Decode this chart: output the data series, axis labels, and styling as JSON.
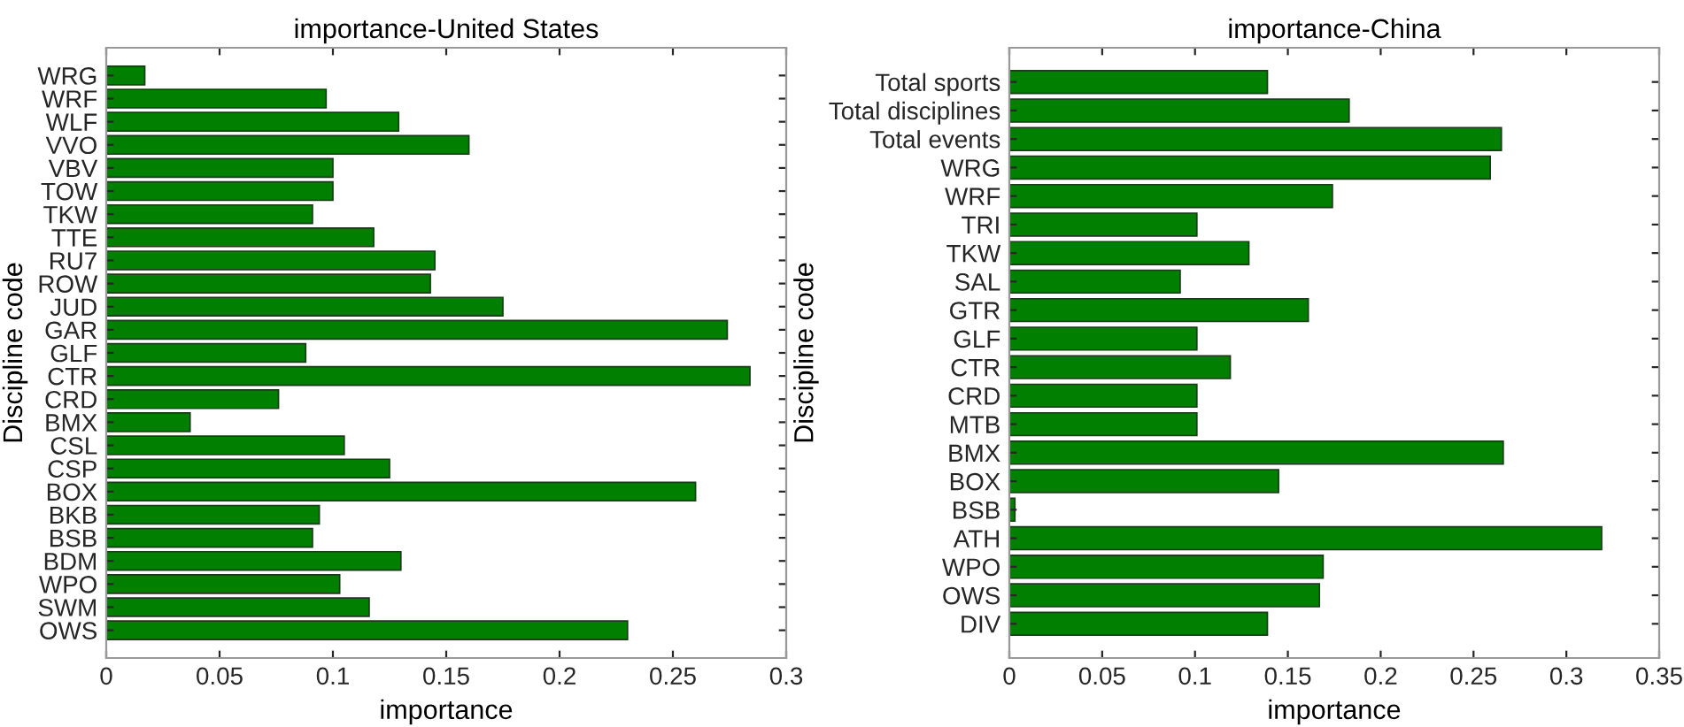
{
  "chart_data": [
    {
      "type": "bar",
      "orientation": "horizontal",
      "title": "importance-United States",
      "xlabel": "importance",
      "ylabel": "Discipline code",
      "color": "#007f00",
      "categories": [
        "WRG",
        "WRF",
        "WLF",
        "VVO",
        "VBV",
        "TOW",
        "TKW",
        "TTE",
        "RU7",
        "ROW",
        "JUD",
        "GAR",
        "GLF",
        "CTR",
        "CRD",
        "BMX",
        "CSL",
        "CSP",
        "BOX",
        "BKB",
        "BSB",
        "BDM",
        "WPO",
        "SWM",
        "OWS"
      ],
      "values": [
        0.017,
        0.097,
        0.129,
        0.16,
        0.1,
        0.1,
        0.091,
        0.118,
        0.145,
        0.143,
        0.175,
        0.274,
        0.088,
        0.284,
        0.076,
        0.037,
        0.105,
        0.125,
        0.26,
        0.094,
        0.091,
        0.13,
        0.103,
        0.116,
        0.23
      ],
      "xlim": [
        0,
        0.3
      ],
      "xticks": [
        0,
        0.05,
        0.1,
        0.15,
        0.2,
        0.25,
        0.3
      ],
      "grid": false,
      "legend": false
    },
    {
      "type": "bar",
      "orientation": "horizontal",
      "title": "importance-China",
      "xlabel": "importance",
      "ylabel": "Discipline code",
      "color": "#007f00",
      "categories": [
        "Total sports",
        "Total disciplines",
        "Total events",
        "WRG",
        "WRF",
        "TRI",
        "TKW",
        "SAL",
        "GTR",
        "GLF",
        "CTR",
        "CRD",
        "MTB",
        "BMX",
        "BOX",
        "BSB",
        "ATH",
        "WPO",
        "OWS",
        "DIV"
      ],
      "values": [
        0.139,
        0.183,
        0.265,
        0.259,
        0.174,
        0.101,
        0.129,
        0.092,
        0.161,
        0.101,
        0.119,
        0.101,
        0.101,
        0.266,
        0.145,
        0.003,
        0.319,
        0.169,
        0.167,
        0.139
      ],
      "xlim": [
        0,
        0.35
      ],
      "xticks": [
        0,
        0.05,
        0.1,
        0.15,
        0.2,
        0.25,
        0.3,
        0.35
      ],
      "grid": false,
      "legend": false
    }
  ]
}
